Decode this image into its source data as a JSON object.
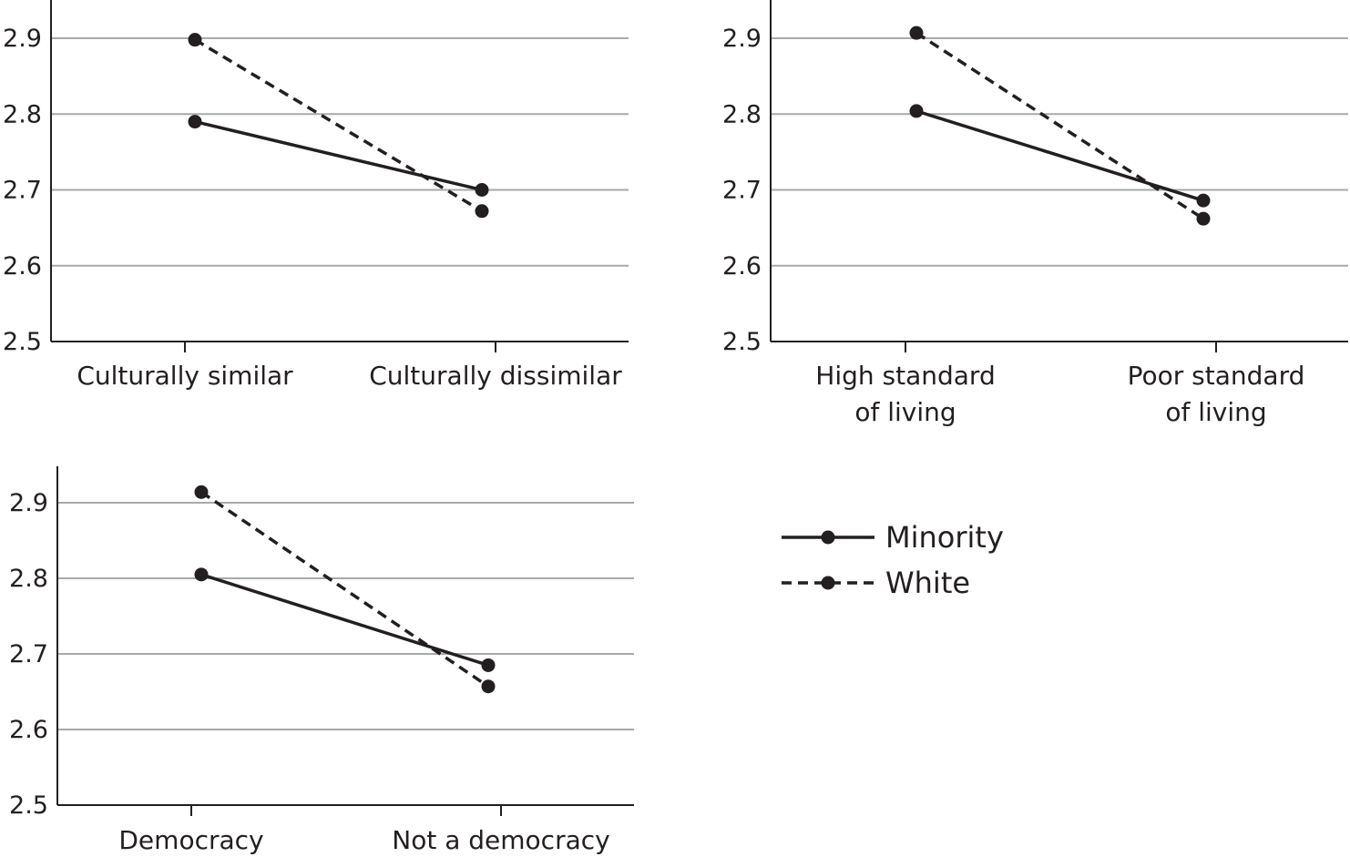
{
  "legend": [
    {
      "name": "Minority",
      "style": "solid"
    },
    {
      "name": "White",
      "style": "dashed"
    }
  ],
  "colors": {
    "line": "#231f20",
    "grid": "#a7a9ac",
    "axis": "#231f20"
  },
  "chart_data": [
    {
      "type": "line",
      "categories": [
        [
          "Culturally similar"
        ],
        [
          "Culturally dissimilar"
        ]
      ],
      "yticks": [
        "2.5",
        "2.6",
        "2.7",
        "2.8",
        "2.9"
      ],
      "ylim": [
        2.5,
        2.9
      ],
      "grid": true,
      "series": [
        {
          "name": "Minority",
          "values": [
            2.79,
            2.7
          ]
        },
        {
          "name": "White",
          "values": [
            2.898,
            2.672
          ]
        }
      ]
    },
    {
      "type": "line",
      "categories": [
        [
          "High standard",
          "of living"
        ],
        [
          "Poor standard",
          "of living"
        ]
      ],
      "yticks": [
        "2.5",
        "2.6",
        "2.7",
        "2.8",
        "2.9"
      ],
      "ylim": [
        2.5,
        2.9
      ],
      "grid": true,
      "series": [
        {
          "name": "Minority",
          "values": [
            2.804,
            2.686
          ]
        },
        {
          "name": "White",
          "values": [
            2.907,
            2.662
          ]
        }
      ]
    },
    {
      "type": "line",
      "categories": [
        [
          "Democracy"
        ],
        [
          "Not a democracy"
        ]
      ],
      "yticks": [
        "2.5",
        "2.6",
        "2.7",
        "2.8",
        "2.9"
      ],
      "ylim": [
        2.5,
        2.9
      ],
      "grid": true,
      "series": [
        {
          "name": "Minority",
          "values": [
            2.805,
            2.685
          ]
        },
        {
          "name": "White",
          "values": [
            2.914,
            2.657
          ]
        }
      ]
    }
  ]
}
